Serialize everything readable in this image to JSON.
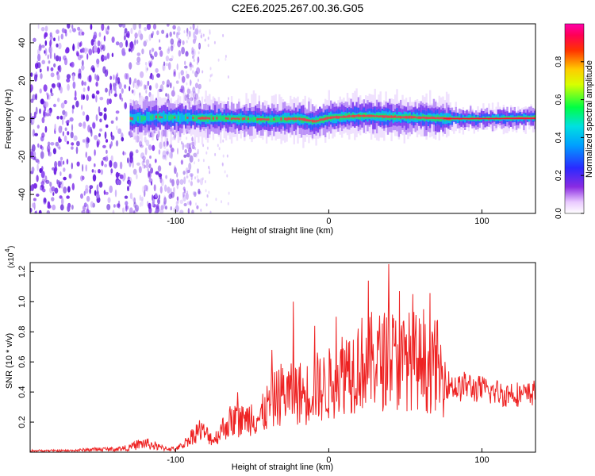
{
  "title": "C2E6.2025.267.00.36.G05",
  "colorbar": {
    "label": "Normalized spectral amplitude",
    "ticks": [
      "0.0",
      "0.2",
      "0.4",
      "0.6",
      "0.8"
    ],
    "tick_values": [
      0.0,
      0.2,
      0.4,
      0.6,
      0.8
    ],
    "range": [
      0,
      1
    ],
    "palette": [
      "#ffffff",
      "#d9b3ff",
      "#8a2be2",
      "#3333ff",
      "#00c8ff",
      "#00ff66",
      "#ffff00",
      "#ff8800",
      "#ff0000",
      "#ff00aa"
    ]
  },
  "chart_data": [
    {
      "type": "heatmap",
      "title": "",
      "xlabel": "Height of straight line (km)",
      "ylabel": "Frequency (Hz)",
      "xlim": [
        -195,
        135
      ],
      "ylim": [
        -50,
        50
      ],
      "x_ticks": [
        -100,
        0,
        100
      ],
      "x_tick_labels": [
        "-100",
        "0",
        "100"
      ],
      "y_ticks": [
        -40,
        -20,
        0,
        20,
        40
      ],
      "y_tick_labels": [
        "-40",
        "-20",
        "0",
        "20",
        "40"
      ],
      "grid": false,
      "ridge": [
        {
          "x": -120,
          "f": 1.0
        },
        {
          "x": -100,
          "f": 0.5
        },
        {
          "x": -80,
          "f": 0.2
        },
        {
          "x": -60,
          "f": 0.0
        },
        {
          "x": -40,
          "f": -0.5
        },
        {
          "x": -20,
          "f": 0.0
        },
        {
          "x": -10,
          "f": -1.5
        },
        {
          "x": 0,
          "f": 0.5
        },
        {
          "x": 20,
          "f": 1.5
        },
        {
          "x": 40,
          "f": 1.0
        },
        {
          "x": 60,
          "f": 0.5
        },
        {
          "x": 80,
          "f": 0.0
        },
        {
          "x": 100,
          "f": 0.0
        },
        {
          "x": 135,
          "f": 0.5
        }
      ],
      "noise_region_x": [
        -195,
        -95
      ]
    },
    {
      "type": "line",
      "title": "",
      "xlabel": "Height of straight line (km)",
      "ylabel": "SNR (10 * v/v)",
      "y_multiplier_label": "(x10",
      "y_multiplier_exp": "4",
      "y_multiplier_close": ")",
      "xlim": [
        -195,
        135
      ],
      "ylim": [
        0,
        1.26
      ],
      "x_ticks": [
        -100,
        0,
        100
      ],
      "x_tick_labels": [
        "-100",
        "0",
        "100"
      ],
      "y_ticks": [
        0.2,
        0.4,
        0.6,
        0.8,
        1.0,
        1.2
      ],
      "y_tick_labels": [
        "0.2",
        "0.4",
        "0.6",
        "0.8",
        "1.0",
        "1.2"
      ],
      "grid": false,
      "series": [
        {
          "color": "#ee2222",
          "x": [
            -195,
            -170,
            -150,
            -140,
            -130,
            -125,
            -120,
            -110,
            -100,
            -95,
            -90,
            -85,
            -80,
            -75,
            -70,
            -65,
            -60,
            -55,
            -50,
            -45,
            -40,
            -35,
            -30,
            -25,
            -20,
            -15,
            -10,
            -5,
            0,
            5,
            10,
            15,
            20,
            25,
            30,
            35,
            40,
            45,
            50,
            55,
            60,
            65,
            70,
            75,
            80,
            85,
            90,
            95,
            100,
            105,
            110,
            115,
            120,
            125,
            130,
            135
          ],
          "y": [
            0.01,
            0.01,
            0.02,
            0.02,
            0.03,
            0.05,
            0.06,
            0.03,
            0.02,
            0.05,
            0.1,
            0.15,
            0.12,
            0.08,
            0.15,
            0.2,
            0.22,
            0.2,
            0.25,
            0.22,
            0.3,
            0.35,
            0.4,
            0.38,
            0.4,
            0.38,
            0.45,
            0.42,
            0.45,
            0.48,
            0.55,
            0.55,
            0.6,
            0.58,
            0.62,
            0.6,
            0.65,
            0.58,
            0.6,
            0.62,
            0.58,
            0.55,
            0.6,
            0.45,
            0.45,
            0.42,
            0.45,
            0.42,
            0.42,
            0.4,
            0.4,
            0.38,
            0.4,
            0.38,
            0.38,
            0.4
          ],
          "peaks": [
            {
              "x": -121,
              "y": 0.08
            },
            {
              "x": -65,
              "y": 0.18
            },
            {
              "x": -55,
              "y": 0.25
            },
            {
              "x": -37,
              "y": 0.68
            },
            {
              "x": -23,
              "y": 1.0
            },
            {
              "x": -9,
              "y": 0.84
            },
            {
              "x": 5,
              "y": 0.9
            },
            {
              "x": 13,
              "y": 0.73
            },
            {
              "x": 26,
              "y": 1.14
            },
            {
              "x": 39,
              "y": 1.25
            },
            {
              "x": 46,
              "y": 1.07
            },
            {
              "x": 55,
              "y": 1.05
            },
            {
              "x": 62,
              "y": 0.95
            },
            {
              "x": 68,
              "y": 0.78
            },
            {
              "x": 76,
              "y": 0.6
            }
          ]
        }
      ]
    }
  ]
}
